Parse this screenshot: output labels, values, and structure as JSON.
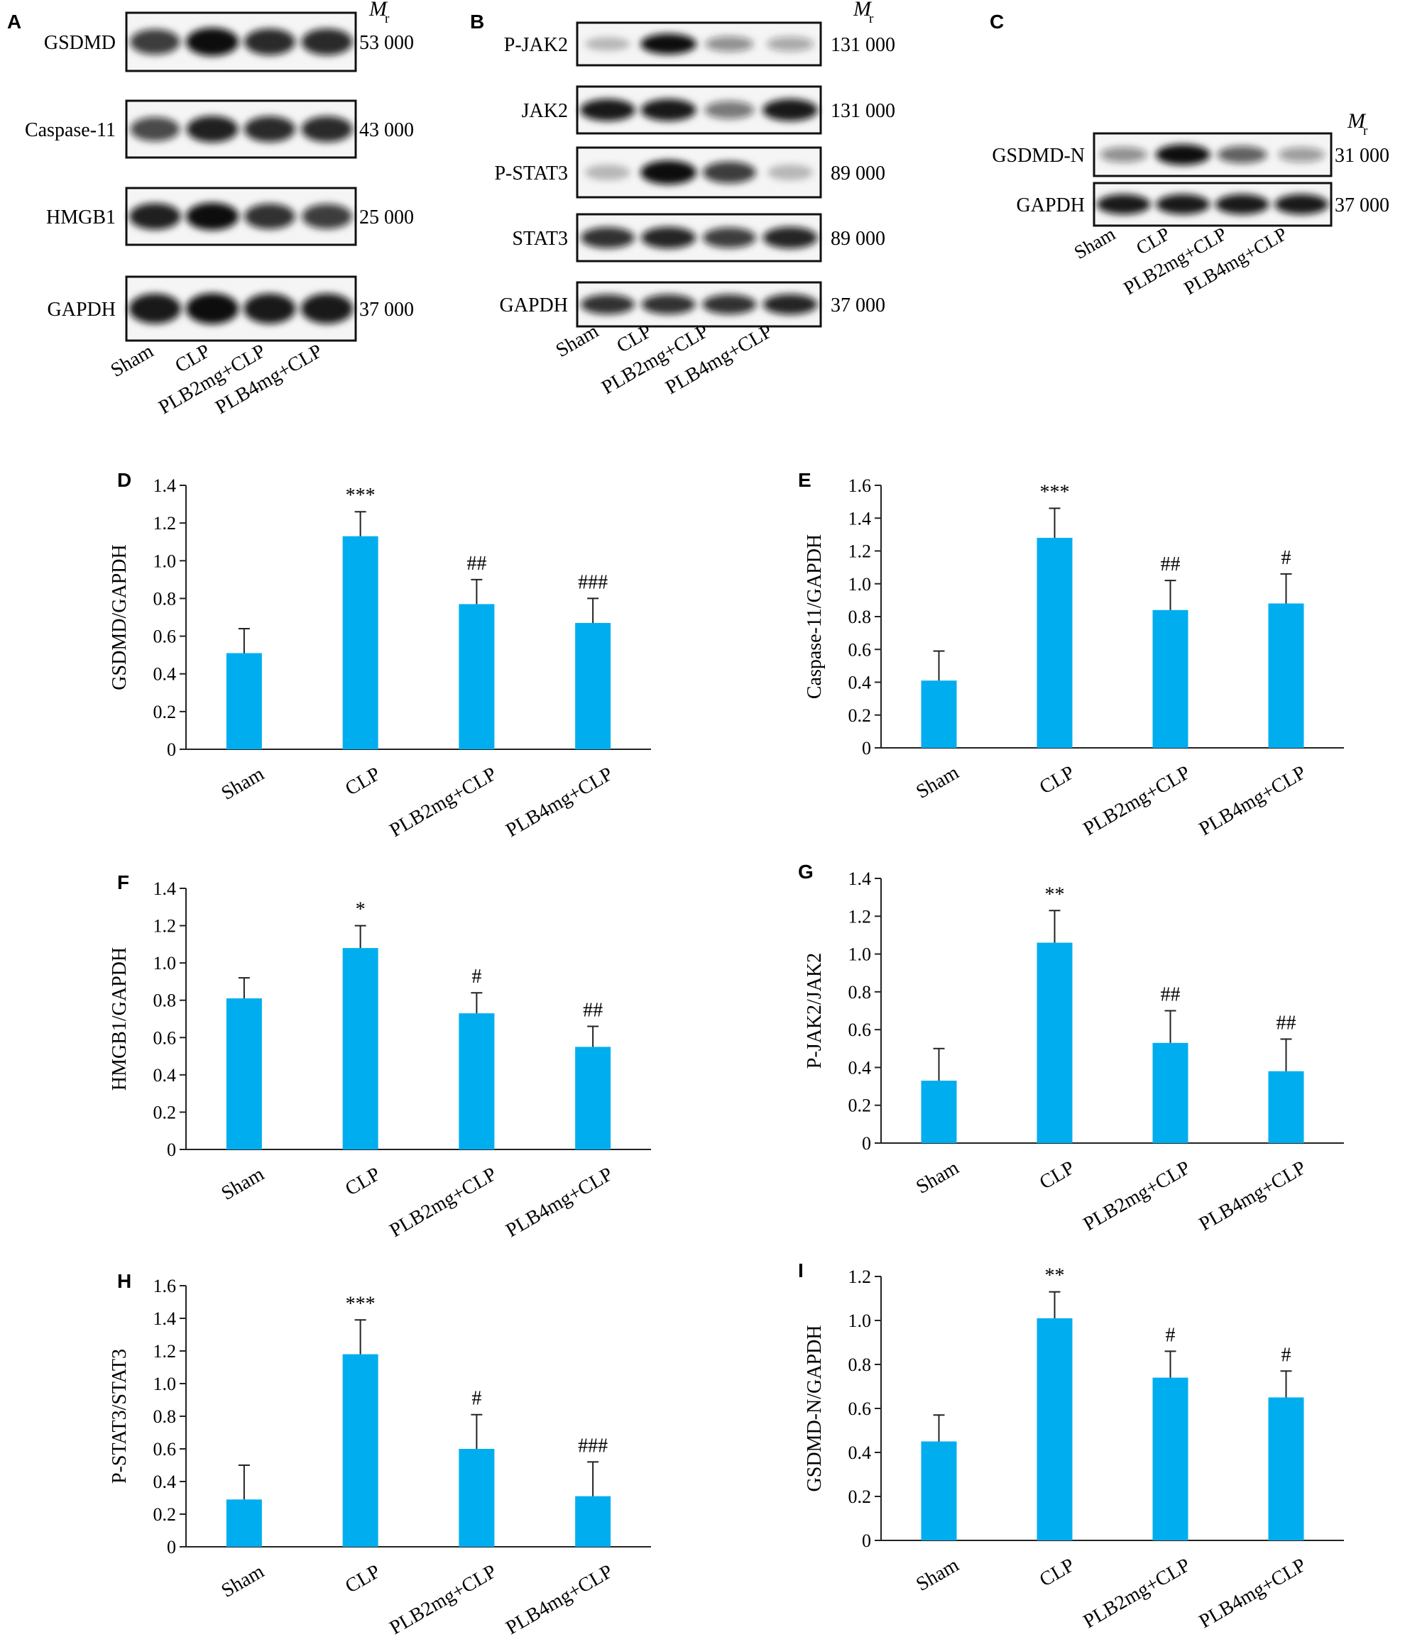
{
  "colors": {
    "bar": "#00aeef",
    "axis": "#222222",
    "band": "#111111",
    "membrane": "#f5f5f5"
  },
  "blot_A": {
    "panel_label": "A",
    "mr_label": "M",
    "mr_sub": "r",
    "rows": [
      {
        "name": "GSDMD",
        "mr": "53 000",
        "intensity": [
          0.8,
          1.0,
          0.88,
          0.88
        ]
      },
      {
        "name": "Caspase-11",
        "mr": "43 000",
        "intensity": [
          0.75,
          0.92,
          0.88,
          0.88
        ]
      },
      {
        "name": "HMGB1",
        "mr": "25 000",
        "intensity": [
          0.92,
          1.0,
          0.85,
          0.8
        ]
      },
      {
        "name": "GAPDH",
        "mr": "37 000",
        "intensity": [
          0.95,
          1.0,
          0.95,
          0.95
        ]
      }
    ],
    "lanes": [
      "Sham",
      "CLP",
      "PLB2mg+CLP",
      "PLB4mg+CLP"
    ]
  },
  "blot_B": {
    "panel_label": "B",
    "mr_label": "M",
    "mr_sub": "r",
    "rows": [
      {
        "name": "P-JAK2",
        "mr": "131 000",
        "intensity": [
          0.25,
          1.0,
          0.45,
          0.35
        ]
      },
      {
        "name": "JAK2",
        "mr": "131 000",
        "intensity": [
          0.95,
          0.95,
          0.55,
          0.95
        ]
      },
      {
        "name": "P-STAT3",
        "mr": "89 000",
        "intensity": [
          0.25,
          1.0,
          0.8,
          0.25
        ]
      },
      {
        "name": "STAT3",
        "mr": "89 000",
        "intensity": [
          0.85,
          0.9,
          0.8,
          0.9
        ]
      },
      {
        "name": "GAPDH",
        "mr": "37 000",
        "intensity": [
          0.85,
          0.85,
          0.85,
          0.9
        ]
      }
    ],
    "lanes": [
      "Sham",
      "CLP",
      "PLB2mg+CLP",
      "PLB4mg+CLP"
    ]
  },
  "blot_C": {
    "panel_label": "C",
    "mr_label": "M",
    "mr_sub": "r",
    "rows": [
      {
        "name": "GSDMD-N",
        "mr": "31 000",
        "intensity": [
          0.45,
          1.0,
          0.65,
          0.4
        ]
      },
      {
        "name": "GAPDH",
        "mr": "37 000",
        "intensity": [
          0.95,
          0.95,
          0.95,
          0.95
        ]
      }
    ],
    "lanes": [
      "Sham",
      "CLP",
      "PLB2mg+CLP",
      "PLB4mg+CLP"
    ]
  },
  "chart_data": [
    {
      "panel": "D",
      "type": "bar",
      "ylabel": "GSDMD/GAPDH",
      "categories": [
        "Sham",
        "CLP",
        "PLB2mg+CLP",
        "PLB4mg+CLP"
      ],
      "values": [
        0.51,
        1.13,
        0.77,
        0.67
      ],
      "errors": [
        0.13,
        0.13,
        0.13,
        0.13
      ],
      "annotations": [
        "",
        "***",
        "##",
        "###"
      ],
      "ylim": [
        0,
        1.4
      ],
      "yticks": [
        "0",
        "0.2",
        "0.4",
        "0.6",
        "0.8",
        "1.0",
        "1.2",
        "1.4"
      ]
    },
    {
      "panel": "E",
      "type": "bar",
      "ylabel": "Caspase-11/GAPDH",
      "categories": [
        "Sham",
        "CLP",
        "PLB2mg+CLP",
        "PLB4mg+CLP"
      ],
      "values": [
        0.41,
        1.28,
        0.84,
        0.88
      ],
      "errors": [
        0.18,
        0.18,
        0.18,
        0.18
      ],
      "annotations": [
        "",
        "***",
        "##",
        "#"
      ],
      "ylim": [
        0,
        1.6
      ],
      "yticks": [
        "0",
        "0.2",
        "0.4",
        "0.6",
        "0.8",
        "1.0",
        "1.2",
        "1.4",
        "1.6"
      ]
    },
    {
      "panel": "F",
      "type": "bar",
      "ylabel": "HMGB1/GAPDH",
      "categories": [
        "Sham",
        "CLP",
        "PLB2mg+CLP",
        "PLB4mg+CLP"
      ],
      "values": [
        0.81,
        1.08,
        0.73,
        0.55
      ],
      "errors": [
        0.11,
        0.12,
        0.11,
        0.11
      ],
      "annotations": [
        "",
        "*",
        "#",
        "##"
      ],
      "ylim": [
        0,
        1.4
      ],
      "yticks": [
        "0",
        "0.2",
        "0.4",
        "0.6",
        "0.8",
        "1.0",
        "1.2",
        "1.4"
      ]
    },
    {
      "panel": "G",
      "type": "bar",
      "ylabel": "P-JAK2/JAK2",
      "categories": [
        "Sham",
        "CLP",
        "PLB2mg+CLP",
        "PLB4mg+CLP"
      ],
      "values": [
        0.33,
        1.06,
        0.53,
        0.38
      ],
      "errors": [
        0.17,
        0.17,
        0.17,
        0.17
      ],
      "annotations": [
        "",
        "**",
        "##",
        "##"
      ],
      "ylim": [
        0,
        1.4
      ],
      "yticks": [
        "0",
        "0.2",
        "0.4",
        "0.6",
        "0.8",
        "1.0",
        "1.2",
        "1.4"
      ]
    },
    {
      "panel": "H",
      "type": "bar",
      "ylabel": "P-STAT3/STAT3",
      "categories": [
        "Sham",
        "CLP",
        "PLB2mg+CLP",
        "PLB4mg+CLP"
      ],
      "values": [
        0.29,
        1.18,
        0.6,
        0.31
      ],
      "errors": [
        0.21,
        0.21,
        0.21,
        0.21
      ],
      "annotations": [
        "",
        "***",
        "#",
        "###"
      ],
      "ylim": [
        0,
        1.6
      ],
      "yticks": [
        "0",
        "0.2",
        "0.4",
        "0.6",
        "0.8",
        "1.0",
        "1.2",
        "1.4",
        "1.6"
      ]
    },
    {
      "panel": "I",
      "type": "bar",
      "ylabel": "GSDMD-N/GAPDH",
      "categories": [
        "Sham",
        "CLP",
        "PLB2mg+CLP",
        "PLB4mg+CLP"
      ],
      "values": [
        0.45,
        1.01,
        0.74,
        0.65
      ],
      "errors": [
        0.12,
        0.12,
        0.12,
        0.12
      ],
      "annotations": [
        "",
        "**",
        "#",
        "#"
      ],
      "ylim": [
        0,
        1.2
      ],
      "yticks": [
        "0",
        "0.2",
        "0.4",
        "0.6",
        "0.8",
        "1.0",
        "1.2"
      ]
    }
  ]
}
